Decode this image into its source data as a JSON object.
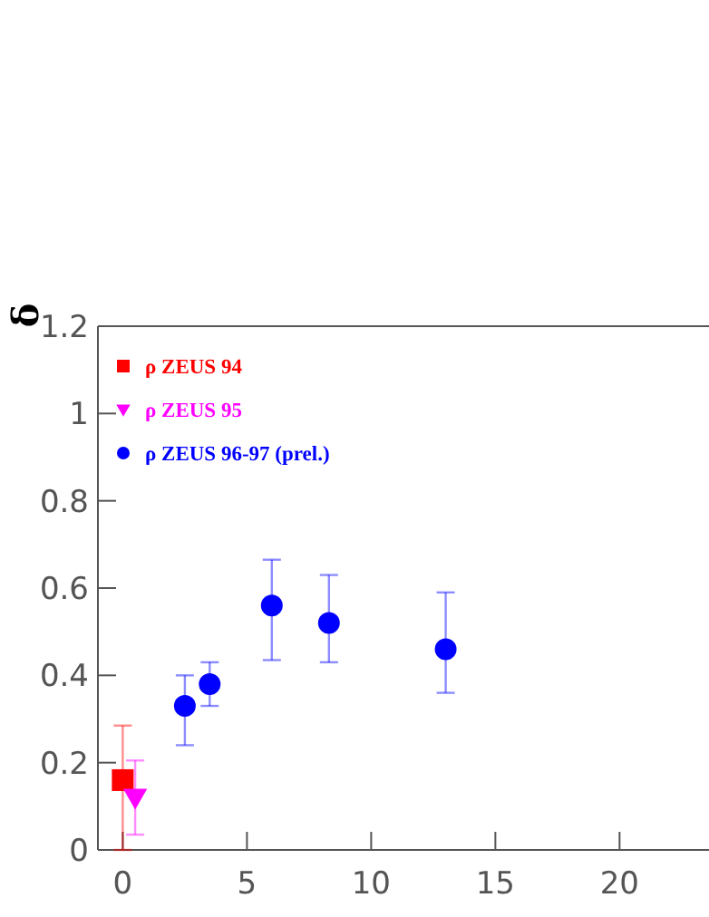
{
  "chart_data": {
    "type": "scatter",
    "ylabel": "δ",
    "xlim": [
      -1,
      23.6
    ],
    "ylim": [
      0,
      1.2
    ],
    "xticks": [
      0,
      5,
      10,
      15,
      20
    ],
    "yticks": [
      0,
      0.2,
      0.4,
      0.6,
      0.8,
      1,
      1.2
    ],
    "legend": "top left",
    "grid": false,
    "series": [
      {
        "name": "ρ ZEUS 94",
        "color": "#ff0000",
        "marker": "square",
        "x": [
          0
        ],
        "values": [
          0.16
        ],
        "errors": [
          [
            0,
            0.285
          ]
        ]
      },
      {
        "name": "ρ ZEUS 95",
        "color": "#ff00ff",
        "marker": "triangle",
        "x": [
          0.5
        ],
        "values": [
          0.12
        ],
        "errors": [
          [
            0.035,
            0.205
          ]
        ]
      },
      {
        "name": "ρ ZEUS 96-97 (prel.)",
        "color": "#0000ff",
        "marker": "circle",
        "x": [
          2.5,
          3.5,
          6,
          8.3,
          13
        ],
        "values": [
          0.33,
          0.38,
          0.56,
          0.52,
          0.46
        ],
        "errors": [
          [
            0.24,
            0.4
          ],
          [
            0.33,
            0.43
          ],
          [
            0.435,
            0.665
          ],
          [
            0.43,
            0.63
          ],
          [
            0.36,
            0.59
          ]
        ]
      }
    ]
  }
}
